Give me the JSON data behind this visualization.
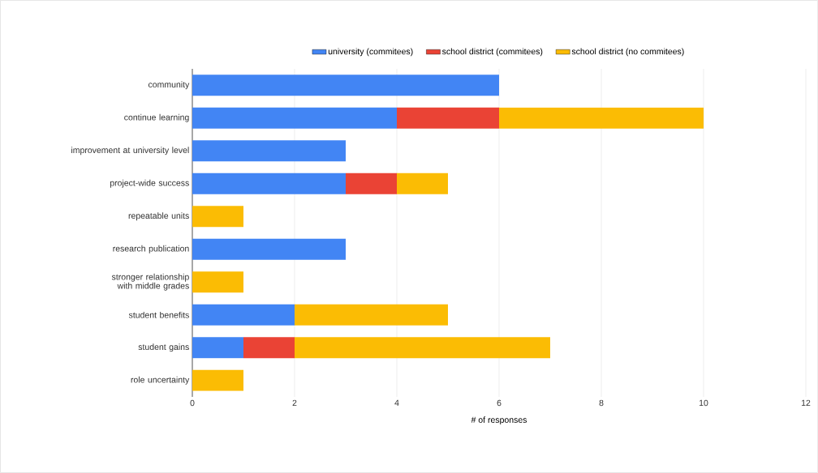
{
  "chart_data": {
    "type": "bar",
    "orientation": "horizontal",
    "stacked": true,
    "categories": [
      "community",
      "continue learning",
      "improvement at university level",
      "project-wide success",
      "repeatable units",
      "research publication",
      "stronger relationship with middle grades",
      "student benefits",
      "student gains",
      "role uncertainty"
    ],
    "series": [
      {
        "name": "university (commitees)",
        "color": "#4285f4",
        "values": [
          6,
          4,
          3,
          3,
          0,
          3,
          0,
          2,
          1,
          0
        ]
      },
      {
        "name": "school district (commitees)",
        "color": "#ea4335",
        "values": [
          0,
          2,
          0,
          1,
          0,
          0,
          0,
          0,
          1,
          0
        ]
      },
      {
        "name": "school district (no commitees)",
        "color": "#fbbc04",
        "values": [
          0,
          4,
          0,
          1,
          1,
          0,
          1,
          3,
          5,
          1
        ]
      }
    ],
    "xlim": [
      0,
      12
    ],
    "xticks": [
      0,
      2,
      4,
      6,
      8,
      10,
      12
    ],
    "xlabel": "# of responses",
    "grid": "x",
    "legend": "top"
  }
}
